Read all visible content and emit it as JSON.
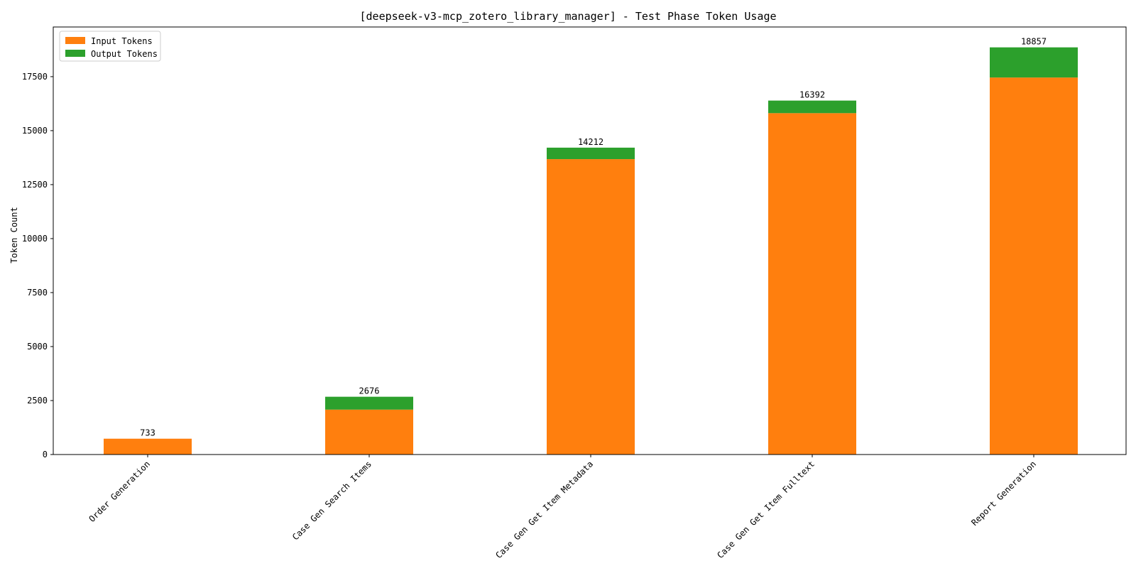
{
  "chart_data": {
    "type": "bar",
    "stacked": true,
    "title": "[deepseek-v3-mcp_zotero_library_manager] - Test Phase Token Usage",
    "xlabel": "",
    "ylabel": "Token Count",
    "categories": [
      "Order Generation",
      "Case Gen Search Items",
      "Case Gen Get Item Metadata",
      "Case Gen Get Item Fulltext",
      "Report Generation"
    ],
    "series": [
      {
        "name": "Input Tokens",
        "color": "#ff7f0e",
        "values": [
          733,
          2080,
          13680,
          15810,
          17460
        ]
      },
      {
        "name": "Output Tokens",
        "color": "#2ca02c",
        "values": [
          0,
          596,
          532,
          582,
          1397
        ]
      }
    ],
    "totals": [
      "733",
      "2676",
      "14212",
      "16392",
      "18857"
    ],
    "ylim": [
      0,
      19800
    ],
    "yticks": [
      0,
      2500,
      5000,
      7500,
      10000,
      12500,
      15000,
      17500
    ],
    "grid": false,
    "legend_position": "top-left"
  }
}
